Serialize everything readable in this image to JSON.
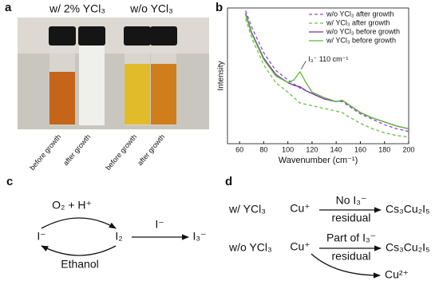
{
  "panel_labels": {
    "a": "a",
    "b": "b",
    "c": "c",
    "d": "d"
  },
  "photo": {
    "group1": "w/ 2% YCl₃",
    "group2": "w/o YCl₃",
    "vials": [
      "before growth",
      "after growth",
      "before growth",
      "after growth"
    ]
  },
  "chart_data": {
    "type": "line",
    "xlabel": "Wavenumber (cm⁻¹)",
    "ylabel": "Intensity",
    "annotation": "I₃⁻ 110 cm⁻¹",
    "legend": "upper right",
    "x": [
      65,
      70,
      80,
      90,
      100,
      105,
      110,
      115,
      120,
      130,
      140,
      145,
      150,
      160,
      170,
      180,
      190,
      200
    ],
    "xlim": [
      50,
      200
    ],
    "xticks": [
      60,
      80,
      100,
      120,
      140,
      160,
      180,
      200
    ],
    "ylim": [
      0,
      100
    ],
    "series": [
      {
        "name": "w/o YCl₃ after growth",
        "color": "#8a4fd0",
        "dash": true,
        "values": [
          98,
          86,
          67,
          54,
          47,
          44,
          41,
          39,
          37,
          33,
          31,
          31,
          28,
          22,
          18,
          14,
          11,
          9
        ]
      },
      {
        "name": "w/ YCl₃ after growth",
        "color": "#6cc04a",
        "dash": true,
        "values": [
          92,
          78,
          58,
          45,
          38,
          34,
          30,
          29,
          28,
          26,
          24,
          23,
          20,
          15,
          11,
          8,
          6,
          5
        ]
      },
      {
        "name": "w/o YCl₃ before growth",
        "color": "#7b2fa0",
        "dash": false,
        "values": [
          96,
          82,
          63,
          51,
          45,
          43,
          42,
          39,
          37,
          33,
          31,
          32,
          29,
          23,
          19,
          16,
          13,
          11
        ]
      },
      {
        "name": "w/ YCl₃ before growth",
        "color": "#5cb83a",
        "dash": false,
        "values": [
          95,
          81,
          62,
          50,
          45,
          47,
          53,
          45,
          38,
          34,
          31,
          32,
          29,
          23,
          19,
          16,
          13,
          11
        ]
      }
    ]
  },
  "scheme_c": {
    "reagent": "O₂ + H⁺",
    "iodide": "I⁻",
    "iodine": "I₂",
    "iodide_add": "I⁻",
    "triiodide": "I₃⁻",
    "ethanol": "Ethanol"
  },
  "scheme_d": {
    "row1": {
      "label": "w/ YCl₃",
      "start": "Cu⁺",
      "above": "No I₃⁻",
      "below": "residual",
      "product": "Cs₃Cu₂I₅"
    },
    "row2": {
      "label": "w/o YCl₃",
      "start": "Cu⁺",
      "above": "Part of I₃⁻",
      "below": "residual",
      "product": "Cs₃Cu₂I₅",
      "side": "Cu²⁺"
    }
  }
}
